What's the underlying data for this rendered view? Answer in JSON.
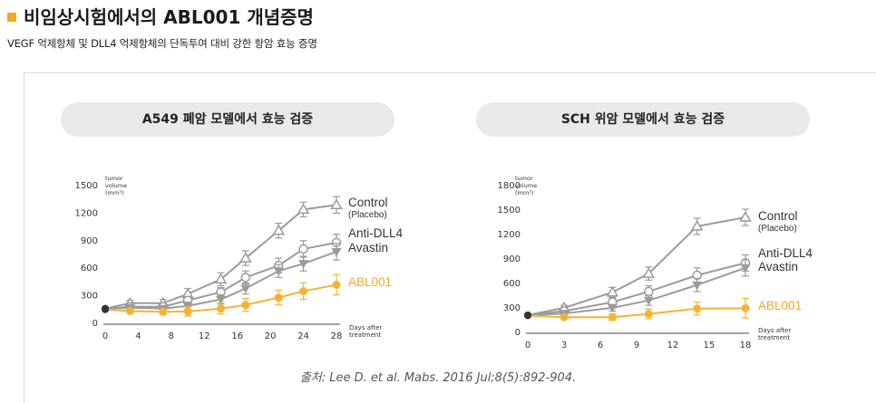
{
  "header": {
    "title": "비임상시험에서의 ABL001 개념증명",
    "subtitle": "VEGF 억제항체 및 DLL4 억제항체의 단독투여 대비 강한 항암 효능 증명"
  },
  "source": "출처: Lee D. et al. Mabs. 2016 Jul;8(5):892-904.",
  "colors": {
    "accent": "#f5a623",
    "gray": "#9b9b9b",
    "abl001": "#f5b335"
  },
  "chart_data": [
    {
      "type": "line",
      "title": "A549 폐암 모델에서 효능 검증",
      "ylabel_lines": [
        "tumor",
        "volume",
        "(mm³)"
      ],
      "xlabel_lines": [
        "Days after",
        "treatment"
      ],
      "ylim": [
        0,
        1500
      ],
      "yticks": [
        0,
        300,
        600,
        900,
        1200,
        1500
      ],
      "xlim": [
        0,
        28
      ],
      "xticks": [
        0,
        4,
        8,
        12,
        16,
        20,
        24,
        28
      ],
      "grid": false,
      "legend_position": "right",
      "x": [
        0,
        3,
        7,
        10,
        14,
        17,
        21,
        24,
        28
      ],
      "series": [
        {
          "label_lines": [
            "Control",
            "(Placebo)"
          ],
          "marker": "triangle-open",
          "color": "#9b9b9b",
          "values": [
            150,
            210,
            210,
            310,
            470,
            700,
            1000,
            1230,
            1280
          ],
          "err": [
            15,
            30,
            40,
            60,
            70,
            80,
            80,
            80,
            90
          ]
        },
        {
          "label_lines": [
            "Anti-DLL4"
          ],
          "marker": "circle-open",
          "color": "#9b9b9b",
          "values": [
            150,
            170,
            170,
            240,
            330,
            490,
            620,
            800,
            870
          ],
          "err": [
            15,
            25,
            30,
            40,
            50,
            70,
            80,
            90,
            90
          ]
        },
        {
          "label_lines": [
            "Avastin"
          ],
          "marker": "triangle-down",
          "color": "#9b9b9b",
          "values": [
            150,
            160,
            150,
            180,
            250,
            370,
            560,
            640,
            770
          ],
          "err": [
            15,
            20,
            25,
            40,
            50,
            60,
            70,
            80,
            90
          ]
        },
        {
          "label_lines": [
            "ABL001"
          ],
          "marker": "circle",
          "color": "#f5b335",
          "values": [
            140,
            125,
            115,
            120,
            150,
            190,
            270,
            340,
            410
          ],
          "err": [
            10,
            20,
            30,
            50,
            60,
            70,
            80,
            90,
            110
          ]
        }
      ]
    },
    {
      "type": "line",
      "title": "SCH 위암 모델에서 효능 검증",
      "ylabel_lines": [
        "tumor",
        "volume",
        "(mm³)"
      ],
      "xlabel_lines": [
        "Days after",
        "treatment"
      ],
      "ylim": [
        0,
        1800
      ],
      "yticks": [
        0,
        300,
        600,
        900,
        1200,
        1500,
        1800
      ],
      "xlim": [
        0,
        18
      ],
      "xticks": [
        0,
        3,
        6,
        9,
        12,
        15,
        18
      ],
      "grid": false,
      "legend_position": "right",
      "x": [
        0,
        3,
        7,
        10,
        14,
        18
      ],
      "series": [
        {
          "label_lines": [
            "Control",
            "(Placebo)"
          ],
          "marker": "triangle-open",
          "color": "#9b9b9b",
          "values": [
            200,
            290,
            480,
            710,
            1290,
            1400
          ],
          "err": [
            15,
            30,
            60,
            80,
            100,
            100
          ]
        },
        {
          "label_lines": [
            "Anti-DLL4"
          ],
          "marker": "circle-open",
          "color": "#9b9b9b",
          "values": [
            200,
            250,
            360,
            490,
            690,
            840
          ],
          "err": [
            15,
            25,
            50,
            70,
            90,
            100
          ]
        },
        {
          "label_lines": [
            "Avastin"
          ],
          "marker": "triangle-down",
          "color": "#9b9b9b",
          "values": [
            200,
            220,
            290,
            380,
            570,
            780
          ],
          "err": [
            15,
            20,
            40,
            60,
            80,
            100
          ]
        },
        {
          "label_lines": [
            "ABL001"
          ],
          "marker": "circle",
          "color": "#f5b335",
          "values": [
            195,
            175,
            175,
            215,
            280,
            285
          ],
          "err": [
            10,
            20,
            40,
            60,
            80,
            120
          ]
        }
      ]
    }
  ]
}
